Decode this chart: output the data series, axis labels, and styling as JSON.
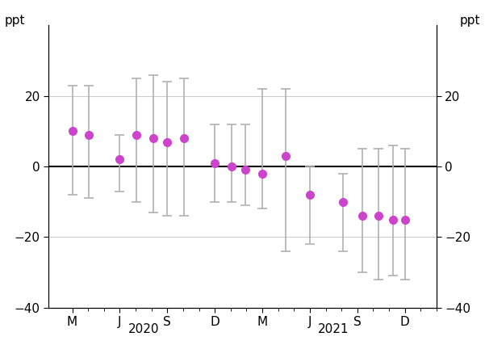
{
  "points_x": [
    0,
    0.35,
    1.0,
    1.35,
    1.7,
    2.0,
    2.35,
    3.0,
    3.35,
    3.65,
    4.0,
    4.5,
    5.0,
    5.7,
    6.1,
    6.45,
    6.75,
    7.0
  ],
  "centers": [
    10,
    9,
    2,
    9,
    8,
    7,
    8,
    1,
    0,
    -1,
    -2,
    3,
    -8,
    -10,
    -14,
    -14,
    -15,
    -15
  ],
  "upper_bounds": [
    23,
    23,
    9,
    25,
    26,
    24,
    25,
    12,
    12,
    12,
    22,
    22,
    0,
    -2,
    5,
    5,
    6,
    5
  ],
  "lower_bounds": [
    -8,
    -9,
    -7,
    -10,
    -13,
    -14,
    -14,
    -10,
    -10,
    -11,
    -12,
    -24,
    -22,
    -24,
    -30,
    -32,
    -31,
    -32
  ],
  "xtick_major_positions": [
    0,
    1,
    2,
    3,
    4,
    5,
    6,
    7
  ],
  "xtick_labels": [
    "M",
    "J",
    "S",
    "D",
    "M",
    "J",
    "S",
    "D"
  ],
  "xlim": [
    -0.5,
    7.5
  ],
  "ylim": [
    -40,
    40
  ],
  "yticks": [
    -40,
    -20,
    0,
    20
  ],
  "ppt_label": "ppt",
  "year_2020_x": 1.5,
  "year_2021_x": 5.5,
  "dot_color": "#cc44cc",
  "errorbar_color": "#b0b0b0",
  "zero_line_color": "#000000",
  "grid_line_color": "#cccccc",
  "background_color": "#ffffff",
  "errorbar_linewidth": 1.2,
  "cap_size": 4,
  "cap_thick": 1.2,
  "marker_size": 7,
  "tick_labelsize": 11,
  "year_fontsize": 11,
  "ppt_fontsize": 11
}
